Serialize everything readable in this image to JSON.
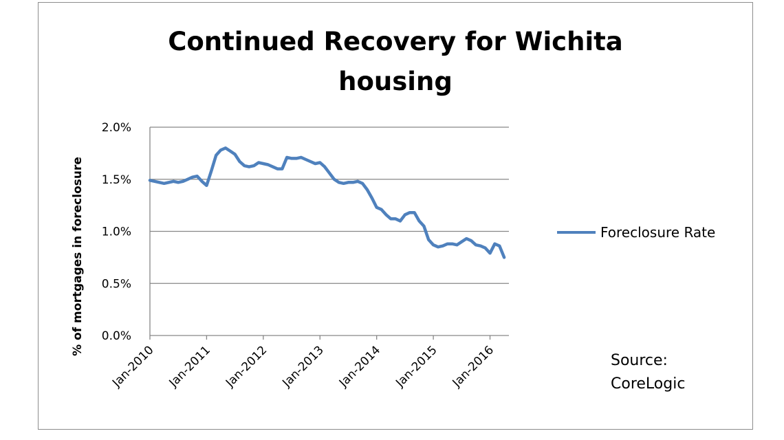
{
  "chart_data": {
    "type": "line",
    "title_lines": [
      "Continued Recovery for Wichita",
      "housing"
    ],
    "ylabel": "% of mortgages in foreclosure",
    "ylim": [
      0,
      2.0
    ],
    "y_ticks": [
      0,
      0.5,
      1.0,
      1.5,
      2.0
    ],
    "y_tick_labels": [
      "0.0%",
      "0.5%",
      "1.0%",
      "1.5%",
      "2.0%"
    ],
    "x_tick_labels": [
      "Jan-2010",
      "Jan-2011",
      "Jan-2012",
      "Jan-2013",
      "Jan-2014",
      "Jan-2015",
      "Jan-2016"
    ],
    "x_month_count": 76,
    "grid": true,
    "legend_position": "right",
    "series": [
      {
        "name": "Foreclosure Rate",
        "color": "#4f81bd",
        "values": [
          1.49,
          1.48,
          1.47,
          1.46,
          1.47,
          1.48,
          1.47,
          1.48,
          1.5,
          1.52,
          1.53,
          1.48,
          1.44,
          1.58,
          1.73,
          1.78,
          1.8,
          1.77,
          1.74,
          1.67,
          1.63,
          1.62,
          1.63,
          1.66,
          1.65,
          1.64,
          1.62,
          1.6,
          1.6,
          1.71,
          1.7,
          1.7,
          1.71,
          1.69,
          1.67,
          1.65,
          1.66,
          1.62,
          1.56,
          1.5,
          1.47,
          1.46,
          1.47,
          1.47,
          1.48,
          1.46,
          1.4,
          1.32,
          1.23,
          1.21,
          1.16,
          1.12,
          1.12,
          1.1,
          1.16,
          1.18,
          1.18,
          1.1,
          1.05,
          0.92,
          0.87,
          0.85,
          0.86,
          0.88,
          0.88,
          0.87,
          0.9,
          0.93,
          0.91,
          0.87,
          0.86,
          0.84,
          0.79,
          0.88,
          0.86,
          0.75
        ]
      }
    ],
    "source_lines": [
      "Source:",
      "CoreLogic"
    ]
  }
}
